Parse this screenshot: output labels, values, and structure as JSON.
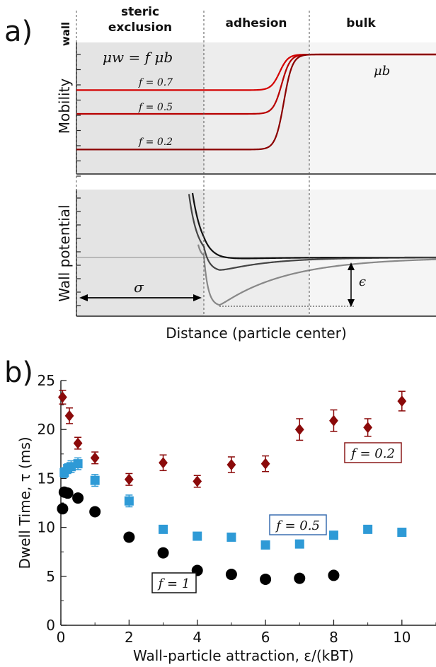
{
  "panel_a": {
    "label": "a)",
    "regions": [
      "wall",
      "steric\nexclusion",
      "adhesion",
      "bulk"
    ],
    "top": {
      "ylabel": "Mobility",
      "equation": "μw = f μb",
      "bulk_label": "μb",
      "curve_labels": [
        "f = 0.7",
        "f = 0.5",
        "f = 0.2"
      ],
      "f_values": [
        0.7,
        0.5,
        0.2
      ],
      "color_curves": "#c40000"
    },
    "bottom": {
      "ylabel": "Wall potential",
      "sigma_label": "σ",
      "epsilon_label": "ϵ",
      "xlabel": "Distance (particle center)",
      "depths": [
        0.05,
        0.3,
        1.0
      ],
      "colors": [
        "#111111",
        "#444444",
        "#888888"
      ]
    }
  },
  "panel_b": {
    "label": "b)",
    "box_labels": [
      "f = 0.2",
      "f = 0.5",
      "f = 1"
    ],
    "box_colors": [
      "#8b1a1a",
      "#3a6fb0",
      "#111111"
    ]
  },
  "chart_data": {
    "type": "scatter",
    "xlabel": "Wall-particle attraction, ε/(kBT)",
    "ylabel": "Dwell Time, τ (ms)",
    "xlim": [
      0,
      11
    ],
    "ylim": [
      0,
      25
    ],
    "xticks": [
      0,
      2,
      4,
      6,
      8,
      10
    ],
    "yticks": [
      0,
      5,
      10,
      15,
      20,
      25
    ],
    "series": [
      {
        "name": "f = 0.2",
        "marker": "diamond",
        "color": "#8b0a0a",
        "x": [
          0.05,
          0.25,
          0.5,
          1,
          2,
          3,
          4,
          5,
          6,
          7,
          8,
          9,
          10
        ],
        "y": [
          23.3,
          21.4,
          18.6,
          17.1,
          14.9,
          16.6,
          14.7,
          16.4,
          16.5,
          20.0,
          20.9,
          20.2,
          22.9
        ],
        "err": [
          0.7,
          0.8,
          0.6,
          0.6,
          0.6,
          0.8,
          0.6,
          0.8,
          0.8,
          1.1,
          1.1,
          0.9,
          1.0
        ]
      },
      {
        "name": "f = 0.5",
        "marker": "square",
        "color": "#2e9ad6",
        "x": [
          0.1,
          0.2,
          0.3,
          0.5,
          1,
          2,
          3,
          4,
          5,
          6,
          7,
          8,
          9,
          10
        ],
        "y": [
          15.6,
          16.0,
          16.2,
          16.5,
          14.8,
          12.7,
          9.8,
          9.1,
          9.0,
          8.2,
          8.3,
          9.2,
          9.8,
          9.5
        ],
        "err": [
          0.5,
          0.5,
          0.6,
          0.6,
          0.6,
          0.6,
          0.3,
          0.3,
          0.3,
          0.3,
          0.3,
          0.3,
          0.3,
          0.3
        ]
      },
      {
        "name": "f = 1",
        "marker": "circle",
        "color": "#000000",
        "x": [
          0.05,
          0.1,
          0.2,
          0.5,
          1,
          2,
          3,
          4,
          5,
          6,
          7,
          8
        ],
        "y": [
          11.9,
          13.6,
          13.5,
          13.0,
          11.6,
          9.0,
          7.4,
          5.6,
          5.2,
          4.7,
          4.8,
          5.1
        ],
        "err": [
          0,
          0,
          0,
          0,
          0,
          0,
          0,
          0,
          0,
          0,
          0,
          0
        ]
      }
    ]
  }
}
